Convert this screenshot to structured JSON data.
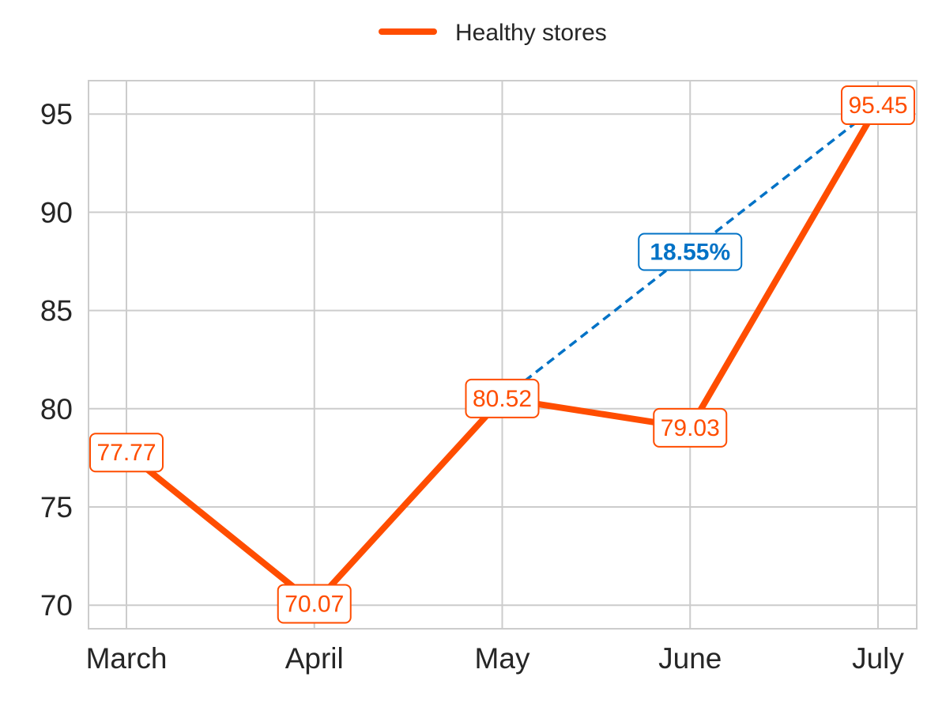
{
  "chart_data": {
    "type": "line",
    "categories": [
      "March",
      "April",
      "May",
      "June",
      "July"
    ],
    "series": [
      {
        "name": "Healthy stores",
        "values": [
          77.77,
          70.07,
          80.52,
          79.03,
          95.45
        ],
        "color": "#ff4d00"
      }
    ],
    "data_labels": [
      "77.77",
      "70.07",
      "80.52",
      "79.03",
      "95.45"
    ],
    "yticks": [
      70,
      75,
      80,
      85,
      90,
      95
    ],
    "ylim": [
      68.8,
      96.7
    ],
    "grid": true,
    "legend": "top-center",
    "annotation": {
      "text": "18.55%",
      "from_category": "May",
      "to_category": "July",
      "from_value": 80.52,
      "to_value": 95.45,
      "color": "#0072c6",
      "style": "dashed"
    }
  }
}
